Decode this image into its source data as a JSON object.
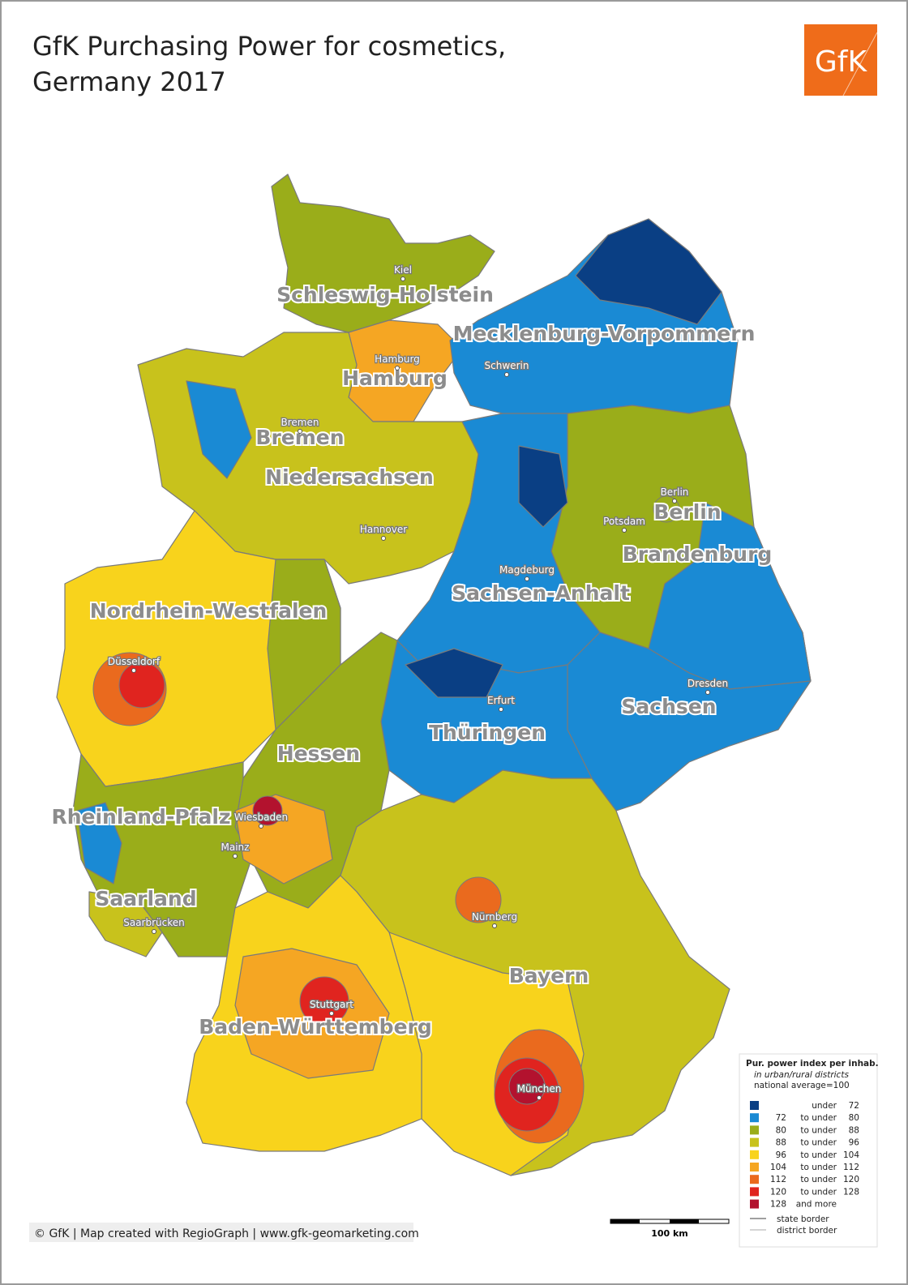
{
  "title": [
    "GfK Purchasing Power for cosmetics,",
    "Germany 2017"
  ],
  "logo": "GfK",
  "states": [
    "Schleswig-Holstein",
    "Mecklenburg-Vorpommern",
    "Hamburg",
    "Bremen",
    "Niedersachsen",
    "Berlin",
    "Brandenburg",
    "Sachsen-Anhalt",
    "Nordrhein-Westfalen",
    "Sachsen",
    "Thüringen",
    "Hessen",
    "Rheinland-Pfalz",
    "Saarland",
    "Bayern",
    "Baden-Württemberg"
  ],
  "cities": [
    "Kiel",
    "Hamburg",
    "Schwerin",
    "Bremen",
    "Hannover",
    "Berlin",
    "Potsdam",
    "Magdeburg",
    "Düsseldorf",
    "Dresden",
    "Erfurt",
    "Wiesbaden",
    "Mainz",
    "Saarbrücken",
    "Nürnberg",
    "Stuttgart",
    "München"
  ],
  "legend": {
    "title": "Pur. power index per inhab.",
    "subtitle": [
      "in urban/rural districts",
      "national average=100"
    ],
    "classes": [
      {
        "color": "#0a3f84",
        "from": null,
        "connector": "under",
        "to": 72
      },
      {
        "color": "#1a8ad4",
        "from": 72,
        "connector": "to under",
        "to": 80
      },
      {
        "color": "#9aad1a",
        "from": 80,
        "connector": "to under",
        "to": 88
      },
      {
        "color": "#c8c21c",
        "from": 88,
        "connector": "to under",
        "to": 96
      },
      {
        "color": "#f8d31c",
        "from": 96,
        "connector": "to under",
        "to": 104
      },
      {
        "color": "#f5a623",
        "from": 104,
        "connector": "to under",
        "to": 112
      },
      {
        "color": "#ea6a1e",
        "from": 112,
        "connector": "to under",
        "to": 120
      },
      {
        "color": "#e0241f",
        "from": 120,
        "connector": "to under",
        "to": 128
      },
      {
        "color": "#b3122e",
        "from": 128,
        "connector": "and more",
        "to": null
      }
    ],
    "borders": [
      "state border",
      "district border"
    ]
  },
  "scale": "100 km",
  "footer": "© GfK | Map created with RegioGraph | www.gfk-geomarketing.com"
}
